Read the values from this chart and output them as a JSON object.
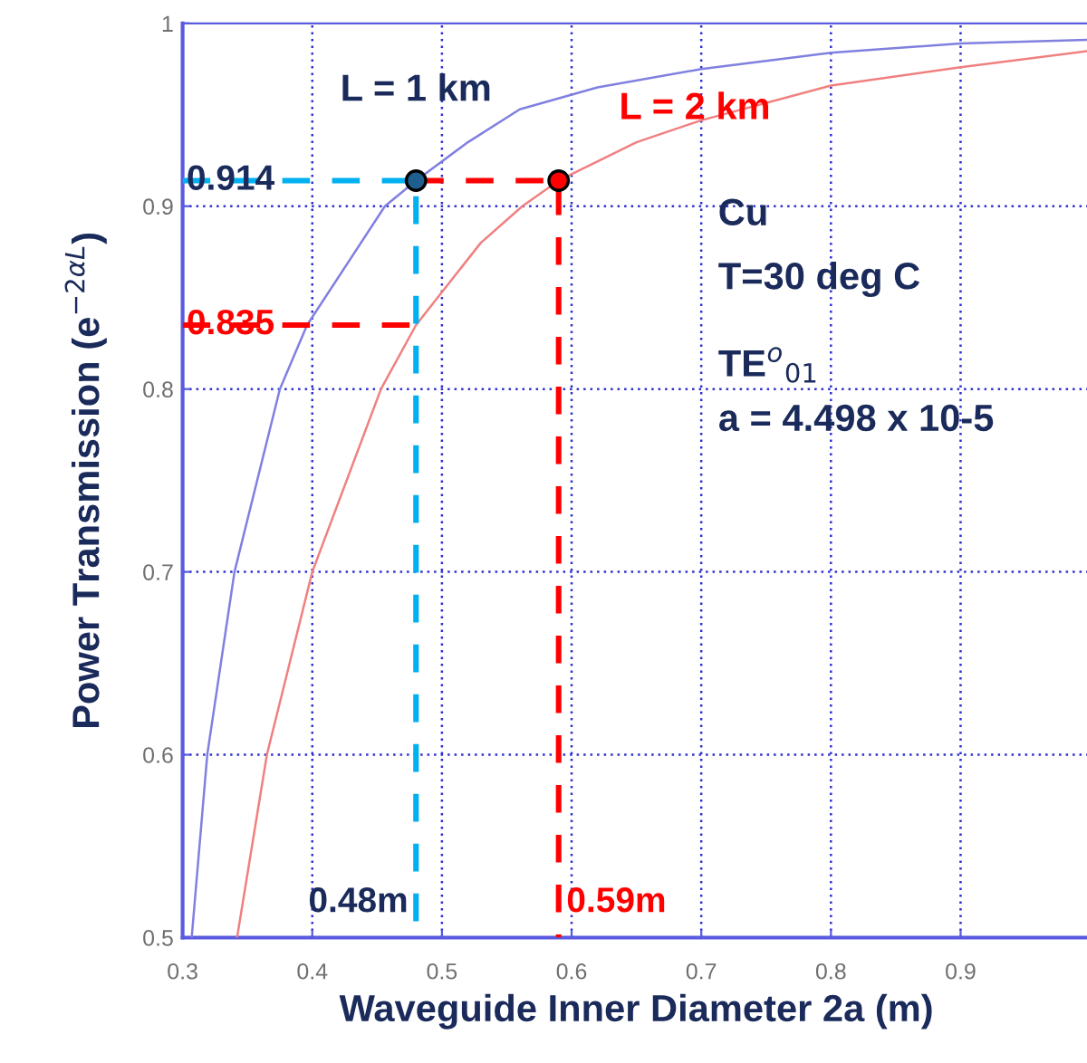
{
  "chart_data": {
    "type": "line",
    "xlabel": "Waveguide Inner Diameter 2a (m)",
    "ylabel": "Power Transmission (e$^{−2αL}$)",
    "xlim": [
      0.3,
      1.0
    ],
    "ylim": [
      0.5,
      1.0
    ],
    "xticks": [
      0.3,
      0.4,
      0.5,
      0.6,
      0.7,
      0.8,
      0.9
    ],
    "yticks": [
      0.5,
      0.6,
      0.7,
      0.8,
      0.9,
      1
    ],
    "grid": true,
    "legend": false,
    "series": [
      {
        "name": "L = 1 km",
        "color": "#8080e0",
        "x": [
          0.307,
          0.319,
          0.34,
          0.375,
          0.396,
          0.456,
          0.48,
          0.52,
          0.56,
          0.62,
          0.7,
          0.8,
          0.9,
          1.0
        ],
        "values": [
          0.5,
          0.6,
          0.7,
          0.8,
          0.835,
          0.9,
          0.914,
          0.935,
          0.953,
          0.965,
          0.975,
          0.984,
          0.989,
          0.991
        ]
      },
      {
        "name": "L = 2 km",
        "color": "#f08080",
        "x": [
          0.342,
          0.365,
          0.4,
          0.453,
          0.48,
          0.53,
          0.562,
          0.59,
          0.65,
          0.7,
          0.8,
          0.9,
          1.0
        ],
        "values": [
          0.5,
          0.6,
          0.7,
          0.8,
          0.835,
          0.88,
          0.9,
          0.914,
          0.935,
          0.947,
          0.966,
          0.976,
          0.985
        ]
      },
      {
        "color": "#00b0f0",
        "type": "line",
        "line_style": "dashed",
        "x": [
          0.3,
          0.48,
          0.48
        ],
        "values": [
          0.914,
          0.914,
          0.5
        ]
      },
      {
        "color": "#ff0000",
        "type": "line",
        "line_style": "dashed",
        "x": [
          0.48,
          0.59,
          0.59
        ],
        "values": [
          0.914,
          0.914,
          0.5
        ]
      },
      {
        "color": "#ff0000",
        "type": "line",
        "line_style": "dashed",
        "x": [
          0.3,
          0.48
        ],
        "values": [
          0.835,
          0.835
        ]
      },
      {
        "color": "#1f5f8f",
        "type": "scatter",
        "marker": "circle",
        "x": [
          0.48
        ],
        "values": [
          0.914
        ]
      },
      {
        "color": "#ff0000",
        "type": "scatter",
        "marker": "circle",
        "x": [
          0.59
        ],
        "values": [
          0.914
        ]
      }
    ],
    "annotations": [
      {
        "text": "0.914",
        "x": 0.3,
        "y": 0.914
      },
      {
        "text": "0.835",
        "x": 0.3,
        "y": 0.835
      },
      {
        "text": "0.48m",
        "x": 0.48,
        "y": 0.5
      },
      {
        "text": "0.59m",
        "x": 0.59,
        "y": 0.5
      },
      "Cu",
      "T=30 deg C",
      "TE$^{o}$$_{01}$",
      "a = 4.498 x 10-5"
    ]
  }
}
